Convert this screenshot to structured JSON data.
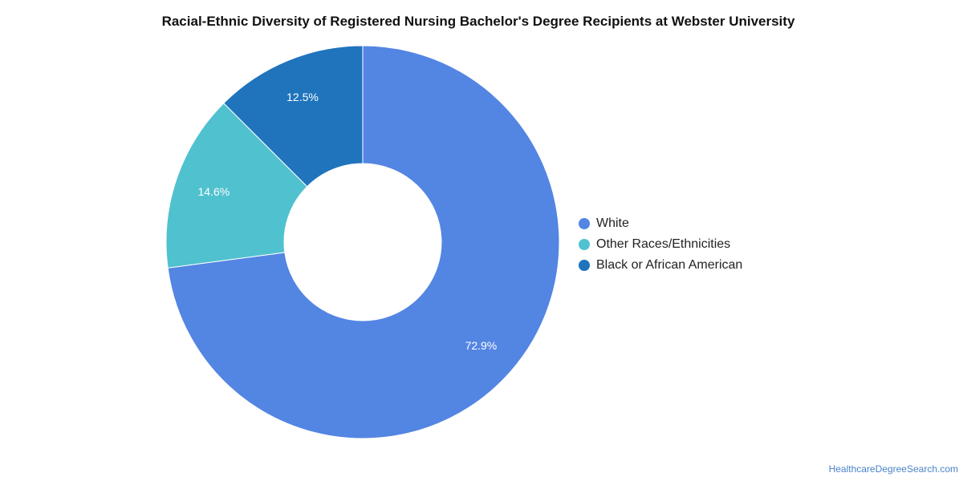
{
  "chart_data": {
    "type": "pie",
    "variant": "donut",
    "title": "Racial-Ethnic Diversity of Registered Nursing Bachelor's Degree Recipients at Webster University",
    "slices": [
      {
        "label": "White",
        "value": 72.9,
        "display": "72.9%",
        "color": "#5385e3"
      },
      {
        "label": "Other Races/Ethnicities",
        "value": 14.6,
        "display": "14.6%",
        "color": "#50c1cf"
      },
      {
        "label": "Black or African American",
        "value": 12.5,
        "display": "12.5%",
        "color": "#1f74bc"
      }
    ],
    "legend_position": "right"
  },
  "footer": {
    "credit": "HealthcareDegreeSearch.com"
  }
}
